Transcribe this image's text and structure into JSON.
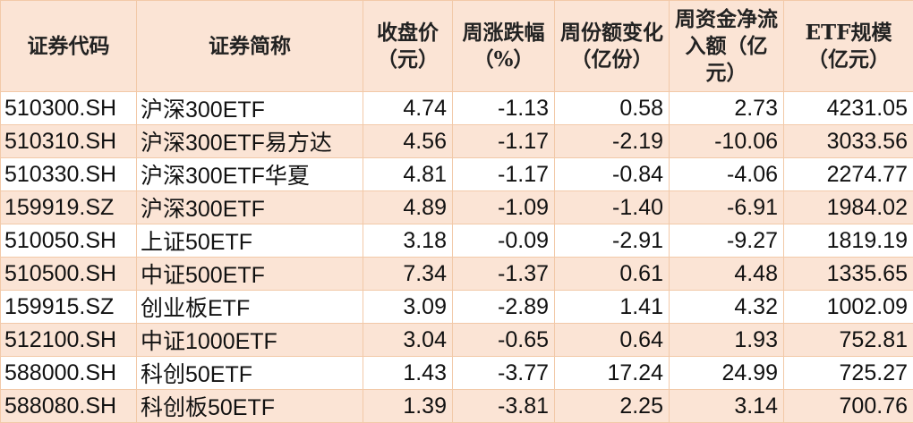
{
  "colors": {
    "header_bg": "#FBE4D5",
    "alt_row_bg": "#FBE4D5",
    "border": "#F2C9A8"
  },
  "headers": [
    "证券代码",
    "证券简称",
    "收盘价（元）",
    "周涨跌幅（%）",
    "周份额变化（亿份）",
    "周资金净流入额（亿元）",
    "ETF规模（亿元）"
  ],
  "rows": [
    [
      "510300.SH",
      "沪深300ETF",
      "4.74",
      "-1.13",
      "0.58",
      "2.73",
      "4231.05"
    ],
    [
      "510310.SH",
      "沪深300ETF易方达",
      "4.56",
      "-1.17",
      "-2.19",
      "-10.06",
      "3033.56"
    ],
    [
      "510330.SH",
      "沪深300ETF华夏",
      "4.81",
      "-1.17",
      "-0.84",
      "-4.06",
      "2274.77"
    ],
    [
      "159919.SZ",
      "沪深300ETF",
      "4.89",
      "-1.09",
      "-1.40",
      "-6.91",
      "1984.02"
    ],
    [
      "510050.SH",
      "上证50ETF",
      "3.18",
      "-0.09",
      "-2.91",
      "-9.27",
      "1819.19"
    ],
    [
      "510500.SH",
      "中证500ETF",
      "7.34",
      "-1.37",
      "0.61",
      "4.48",
      "1335.65"
    ],
    [
      "159915.SZ",
      "创业板ETF",
      "3.09",
      "-2.89",
      "1.41",
      "4.32",
      "1002.09"
    ],
    [
      "512100.SH",
      "中证1000ETF",
      "3.04",
      "-0.65",
      "0.64",
      "1.93",
      "752.81"
    ],
    [
      "588000.SH",
      "科创50ETF",
      "1.43",
      "-3.77",
      "17.24",
      "24.99",
      "725.27"
    ],
    [
      "588080.SH",
      "科创板50ETF",
      "1.39",
      "-3.81",
      "2.25",
      "3.14",
      "700.76"
    ]
  ]
}
